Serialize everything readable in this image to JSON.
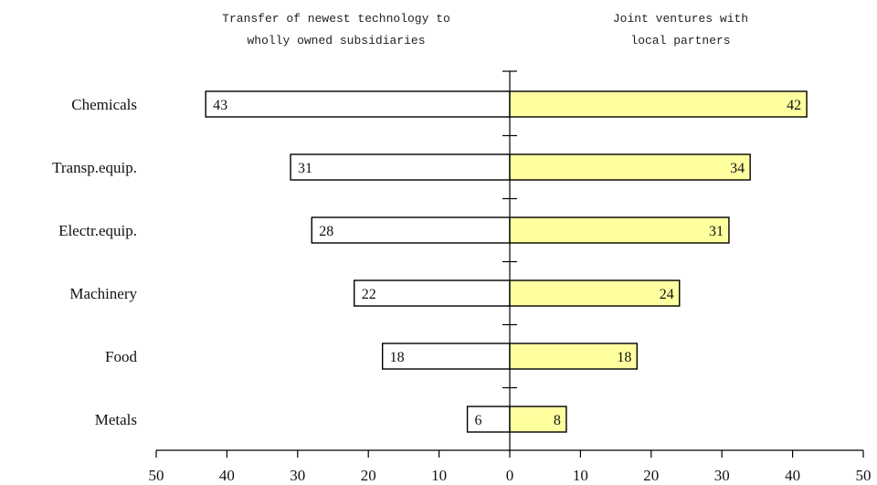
{
  "chart_data": {
    "type": "bar",
    "orientation": "horizontal-diverging",
    "categories": [
      "Chemicals",
      "Transp.equip.",
      "Electr.equip.",
      "Machinery",
      "Food",
      "Metals"
    ],
    "series": [
      {
        "name": "Transfer of newest technology to wholly owned subsidiaries",
        "name_lines": [
          "Transfer of newest technology to",
          "wholly owned subsidiaries"
        ],
        "values": [
          43,
          31,
          28,
          22,
          18,
          6
        ],
        "side": "left",
        "color": "#ffffff"
      },
      {
        "name": "Joint ventures with local partners",
        "name_lines": [
          "Joint ventures with",
          "local partners"
        ],
        "values": [
          42,
          34,
          31,
          24,
          18,
          8
        ],
        "side": "right",
        "color": "#ffffa0"
      }
    ],
    "xlim": [
      -50,
      50
    ],
    "xticks": [
      -50,
      -40,
      -30,
      -20,
      -10,
      0,
      10,
      20,
      30,
      40,
      50
    ],
    "xtick_labels": [
      "50",
      "40",
      "30",
      "20",
      "10",
      "0",
      "10",
      "20",
      "30",
      "40",
      "50"
    ],
    "grid": false,
    "bar_stroke_color": "#000000"
  }
}
